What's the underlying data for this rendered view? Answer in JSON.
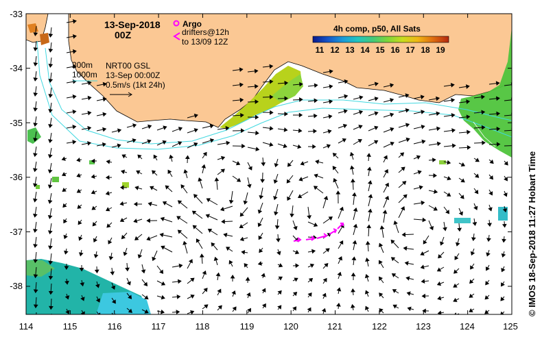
{
  "map": {
    "date_line1": "13-Sep-2018",
    "date_line2": "00Z",
    "legend": {
      "argo_label": "Argo",
      "drifters_line1": "drifters@12h",
      "drifters_line2": "to 13/09 12Z"
    },
    "depth_contours": [
      "200m",
      "1000m"
    ],
    "velocity_info": {
      "line1": "NRT00 GSL",
      "line2": "13-Sep 00:00Z",
      "line3": "0.5m/s (1kt 24h)"
    },
    "colorbar": {
      "title": "4h comp, p50, All Sats",
      "ticks": [
        "11",
        "12",
        "13",
        "14",
        "15",
        "16",
        "17",
        "18",
        "19"
      ],
      "colors": [
        "#0a1a8c",
        "#1554c8",
        "#1b9ad8",
        "#22c6c0",
        "#44c87a",
        "#7ed63a",
        "#c8dc1e",
        "#f0b814",
        "#e07010",
        "#b42810"
      ]
    },
    "credit": "© IMOS 18-Sep-2018 11:27 Hobart Time",
    "x_ticks": [
      "114",
      "115",
      "116",
      "117",
      "118",
      "119",
      "120",
      "121",
      "122",
      "123",
      "124",
      "125"
    ],
    "y_ticks": [
      "-33",
      "-34",
      "-35",
      "-36",
      "-37",
      "-38"
    ],
    "colors": {
      "land": "#fbc894",
      "coast_contour": "#40d8e0",
      "drifter": "#ff00ff"
    }
  }
}
